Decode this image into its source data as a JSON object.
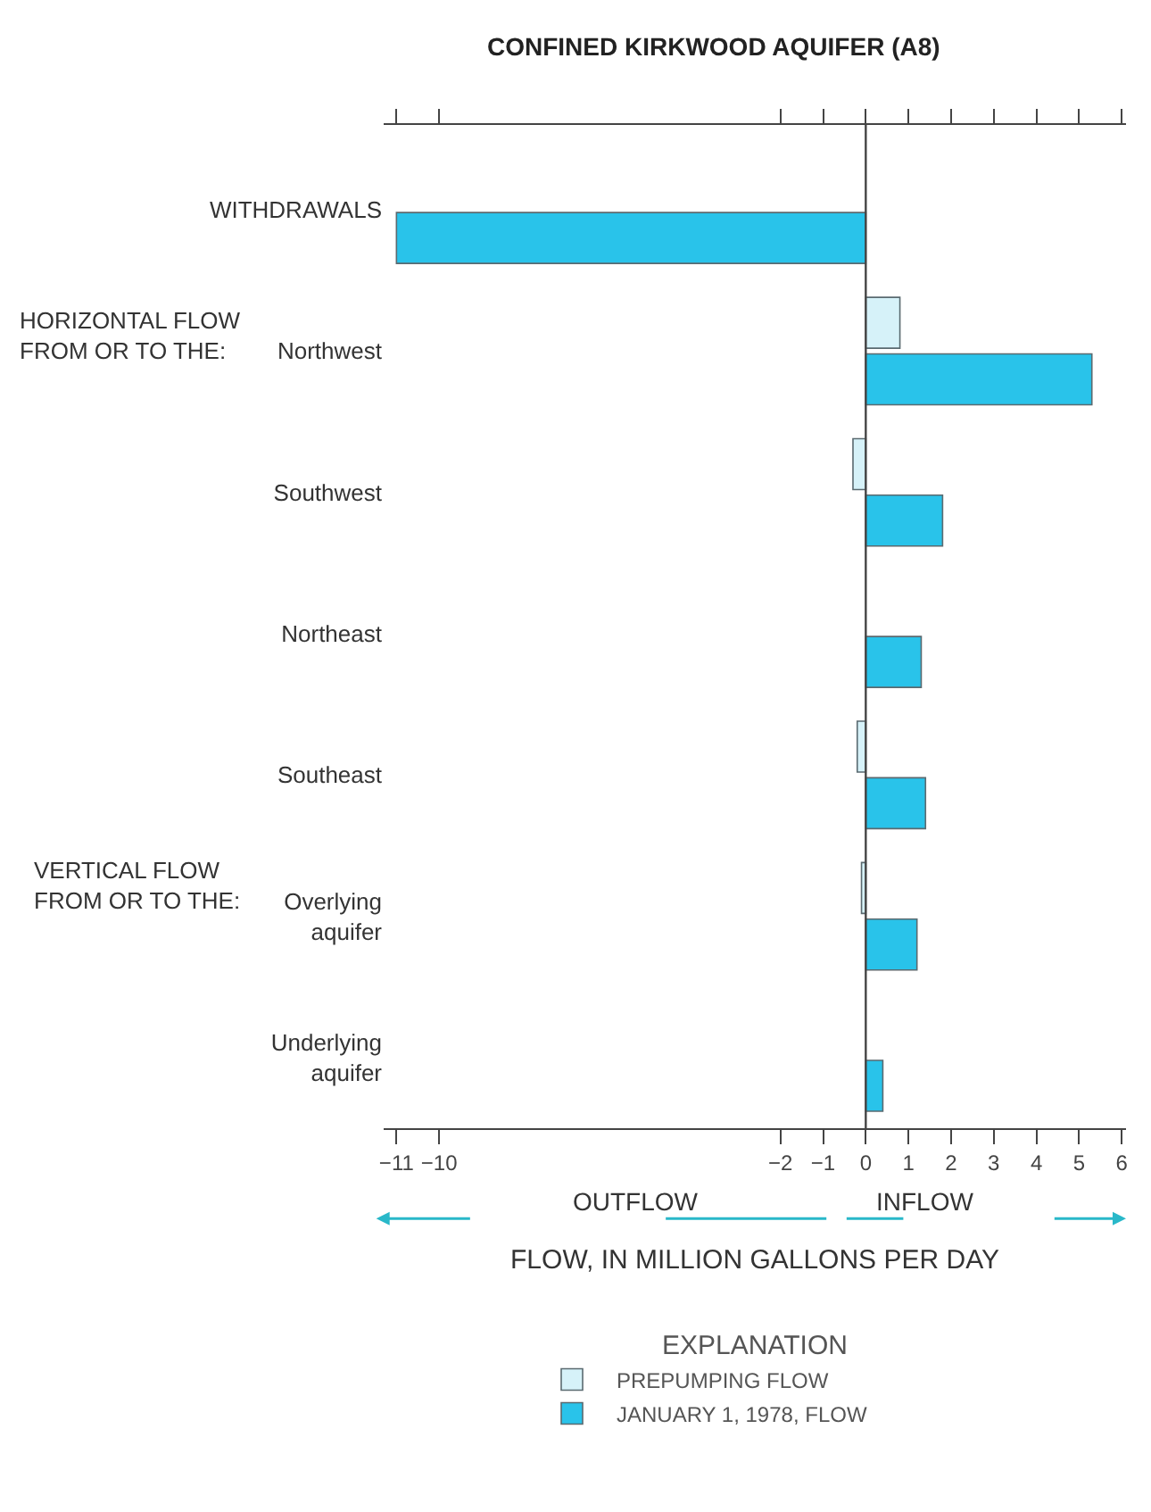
{
  "chart_data": {
    "type": "bar",
    "orientation": "horizontal",
    "title": "CONFINED KIRKWOOD AQUIFER (A8)",
    "xlabel": "FLOW, IN MILLION GALLONS PER DAY",
    "legend_title": "EXPLANATION",
    "categories": [
      "WITHDRAWALS",
      "Northwest",
      "Southwest",
      "Northeast",
      "Southeast",
      "Overlying aquifer",
      "Underlying aquifer"
    ],
    "series": [
      {
        "name": "PREPUMPING FLOW",
        "color": "#d6f2f9",
        "values": [
          null,
          0.8,
          -0.3,
          null,
          -0.2,
          -0.1,
          null
        ]
      },
      {
        "name": "JANUARY 1, 1978, FLOW",
        "color": "#29c3ea",
        "values": [
          -11.0,
          5.3,
          1.8,
          1.3,
          1.4,
          1.2,
          0.4
        ]
      }
    ],
    "xlim": [
      -11.3,
      6.1
    ],
    "xticks": [
      -11,
      -10,
      -2,
      -1,
      0,
      1,
      2,
      3,
      4,
      5,
      6
    ],
    "annotations": [
      "HORIZONTAL FLOW\nFROM OR TO THE:",
      "VERTICAL FLOW\nFROM OR TO THE:",
      "OUTFLOW",
      "INFLOW"
    ],
    "ref_lines": [
      {
        "axis": "x",
        "value": 0,
        "color": "#444444"
      }
    ],
    "grid": false,
    "legend": "bottom"
  }
}
